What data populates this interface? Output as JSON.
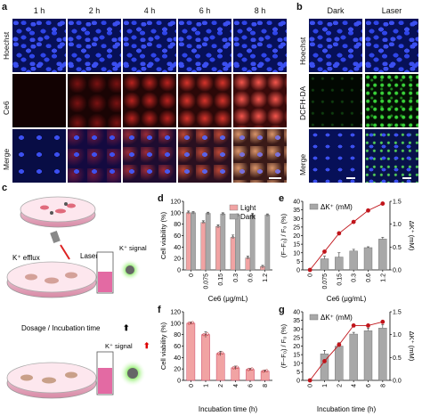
{
  "panel_labels": {
    "a": "a",
    "b": "b",
    "c": "c",
    "d": "d",
    "e": "e",
    "f": "f",
    "g": "g"
  },
  "panel_a": {
    "columns": [
      "1 h",
      "2 h",
      "4 h",
      "6 h",
      "8 h"
    ],
    "rows": [
      "Hoechst",
      "Ce6",
      "Merge"
    ]
  },
  "panel_b": {
    "columns": [
      "Dark",
      "Laser"
    ],
    "rows": [
      "Hoechst",
      "DCFH-DA",
      "Merge"
    ]
  },
  "panel_c": {
    "laser": "Laser",
    "k_efflux": "K⁺ efflux",
    "k_signal": "K⁺ signal",
    "dosage": "Dosage / Incubation time",
    "k_signal_up": "K⁺ signal"
  },
  "colors": {
    "light_bar": "#f1a3a3",
    "dark_bar": "#a8a8a8",
    "dk_bar": "#a8a8a8",
    "red_line": "#c0151b",
    "error": "#333333"
  },
  "chart_data": [
    {
      "id": "d",
      "type": "bar",
      "categories": [
        "0",
        "0.075",
        "0.15",
        "0.3",
        "0.6",
        "1.2"
      ],
      "xlabel": "Ce6 (μg/mL)",
      "ylabel": "Cell viability (%)",
      "ylim": [
        0,
        120
      ],
      "yticks": [
        0,
        20,
        40,
        60,
        80,
        100,
        120
      ],
      "legend": "top-right",
      "series": [
        {
          "name": "Light",
          "values": [
            100,
            83,
            76,
            57,
            21,
            6
          ],
          "errors": [
            3,
            3,
            3,
            4,
            3,
            2
          ]
        },
        {
          "name": "Dark",
          "values": [
            100,
            99,
            98,
            96,
            96,
            96
          ],
          "errors": [
            2,
            2,
            2,
            2,
            3,
            2
          ]
        }
      ]
    },
    {
      "id": "e",
      "type": "bar",
      "categories": [
        "0",
        "0.075",
        "0.15",
        "0.3",
        "0.6",
        "1.2"
      ],
      "xlabel": "Ce6 (μg/mL)",
      "ylabel": "(F−F₀) / F₀ (%)",
      "ylim": [
        0,
        40
      ],
      "yticks": [
        0,
        5,
        10,
        15,
        20,
        25,
        30,
        35,
        40
      ],
      "y2label": "ΔK⁺ (mM)",
      "y2lim": [
        0,
        1.5
      ],
      "y2ticks": [
        0,
        0.5,
        1.0,
        1.5
      ],
      "y2ticklabels": [
        "0.0",
        "0.5",
        "1.0",
        "1.5"
      ],
      "legend": "top-left",
      "series": [
        {
          "name": "ΔK⁺ (mM)",
          "values": [
            0,
            6.5,
            7.5,
            11,
            13,
            18
          ],
          "errors": [
            0,
            1.5,
            2.5,
            1,
            0.5,
            1
          ]
        },
        {
          "values": [
            0,
            0.4,
            0.8,
            1.05,
            1.3,
            1.45
          ]
        }
      ]
    },
    {
      "id": "f",
      "type": "bar",
      "categories": [
        "0",
        "1",
        "2",
        "4",
        "6",
        "8"
      ],
      "xlabel": "Incubation time (h)",
      "ylabel": "Cell viability (%)",
      "ylim": [
        0,
        120
      ],
      "yticks": [
        0,
        20,
        40,
        60,
        80,
        100,
        120
      ],
      "series": [
        {
          "values": [
            100,
            80,
            47,
            22,
            19,
            16
          ],
          "errors": [
            2,
            5,
            4,
            3,
            2,
            2
          ]
        }
      ]
    },
    {
      "id": "g",
      "type": "bar",
      "categories": [
        "0",
        "1",
        "2",
        "4",
        "6",
        "8"
      ],
      "xlabel": "Incubation time (h)",
      "ylabel": "(F−F₀) / F₀ (%)",
      "ylim": [
        0,
        40
      ],
      "yticks": [
        0,
        5,
        10,
        15,
        20,
        25,
        30,
        35,
        40
      ],
      "y2label": "ΔK⁺ (mM)",
      "y2lim": [
        0,
        1.5
      ],
      "y2ticks": [
        0,
        0.5,
        1.0,
        1.5
      ],
      "y2ticklabels": [
        "0.0",
        "0.5",
        "1.0",
        "1.5"
      ],
      "legend": "top-left",
      "series": [
        {
          "name": "ΔK⁺ (mM)",
          "values": [
            0,
            15.5,
            20,
            27,
            29,
            30.5
          ],
          "errors": [
            0,
            2,
            2,
            1,
            1.5,
            2
          ]
        },
        {
          "values": [
            0,
            0.42,
            0.78,
            1.2,
            1.2,
            1.28
          ]
        }
      ]
    }
  ]
}
